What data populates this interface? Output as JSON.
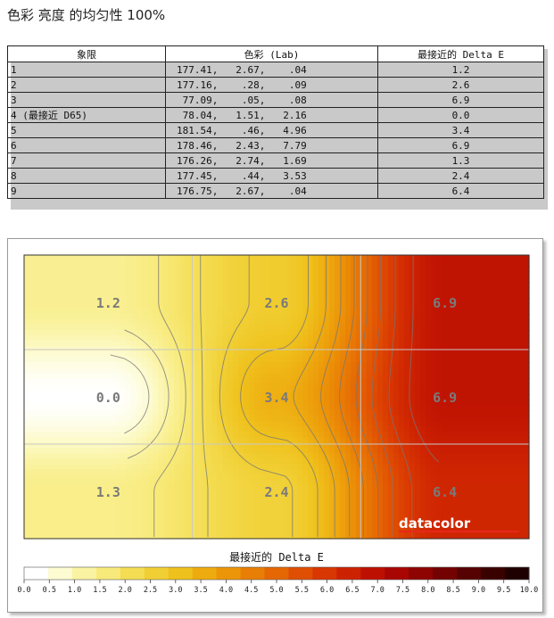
{
  "page_title": "色彩 亮度 的均匀性 100%",
  "table": {
    "headers": [
      "象限",
      "色彩 (Lab)",
      "最接近的 Delta E"
    ],
    "rows": [
      [
        "1",
        "177.41,   2.67,    .04",
        "1.2"
      ],
      [
        "2",
        "177.16,    .28,    .09",
        "2.6"
      ],
      [
        "3",
        " 77.09,    .05,    .08",
        "6.9"
      ],
      [
        "4 (最接近 D65)",
        " 78.04,   1.51,   2.16",
        "0.0"
      ],
      [
        "5",
        "181.54,    .46,   4.96",
        "3.4"
      ],
      [
        "6",
        "178.46,   2.43,   7.79",
        "6.9"
      ],
      [
        "7",
        "176.26,   2.74,   1.69",
        "1.3"
      ],
      [
        "8",
        "177.45,    .44,   3.53",
        "2.4"
      ],
      [
        "9",
        "176.75,   2.67,    .04",
        "6.4"
      ]
    ]
  },
  "chart_data": {
    "type": "heatmap",
    "rows": 3,
    "cols": 3,
    "values": [
      [
        1.2,
        2.6,
        6.9
      ],
      [
        0.0,
        3.4,
        6.9
      ],
      [
        1.3,
        2.4,
        6.4
      ]
    ],
    "labels": [
      [
        "1.2",
        "2.6",
        "6.9"
      ],
      [
        "0.0",
        "3.4",
        "6.9"
      ],
      [
        "1.3",
        "2.4",
        "6.4"
      ]
    ],
    "colorbar": {
      "title": "最接近的 Delta E",
      "min": 0,
      "max": 10,
      "ticks": [
        "0.0",
        "0.5",
        "1.0",
        "1.5",
        "2.0",
        "2.5",
        "3.0",
        "3.5",
        "4.0",
        "4.5",
        "5.0",
        "5.5",
        "6.0",
        "6.5",
        "7.0",
        "7.5",
        "8.0",
        "8.5",
        "9.0",
        "9.5",
        "10.0"
      ],
      "colors": [
        "#ffffff",
        "#fdfbd2",
        "#faf3a2",
        "#f8ea7a",
        "#f4dd52",
        "#f1cf34",
        "#efc11c",
        "#eeab10",
        "#ec9508",
        "#e97e06",
        "#e56704",
        "#e04e03",
        "#d83602",
        "#cd2202",
        "#bd1002",
        "#a80602",
        "#8e0402",
        "#720302",
        "#560202",
        "#3a0101",
        "#1e0000"
      ]
    },
    "watermark": "datacolor",
    "colors": {
      "watermark_bar": "#e8261c"
    }
  }
}
